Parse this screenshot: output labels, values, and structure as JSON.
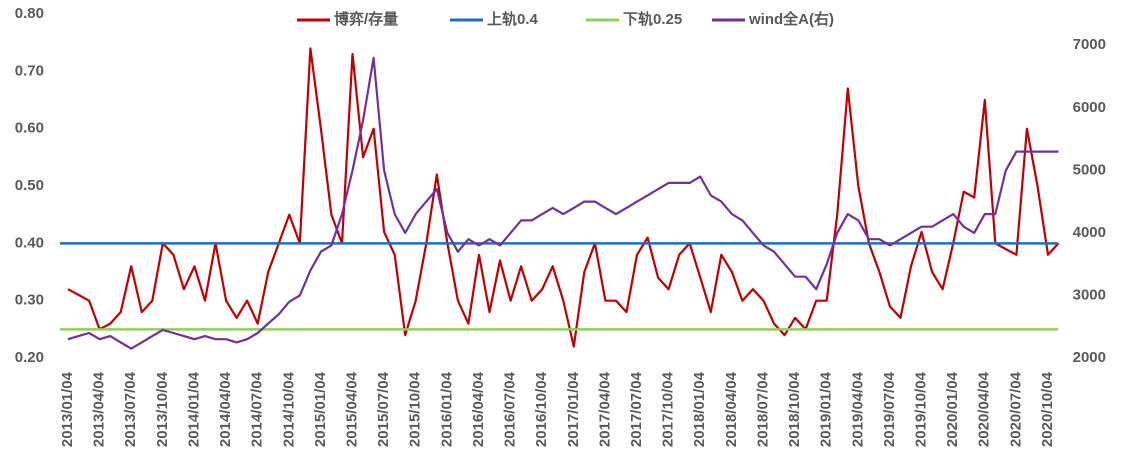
{
  "chart_data": {
    "type": "line",
    "categories": [
      "2013/01/04",
      null,
      null,
      "2013/04/04",
      null,
      null,
      "2013/07/04",
      null,
      null,
      "2013/10/04",
      null,
      null,
      "2014/01/04",
      null,
      null,
      "2014/04/04",
      null,
      null,
      "2014/07/04",
      null,
      null,
      "2014/10/04",
      null,
      null,
      "2015/01/04",
      null,
      null,
      "2015/04/04",
      null,
      null,
      "2015/07/04",
      null,
      null,
      "2015/10/04",
      null,
      null,
      "2016/01/04",
      null,
      null,
      "2016/04/04",
      null,
      null,
      "2016/07/04",
      null,
      null,
      "2016/10/04",
      null,
      null,
      "2017/01/04",
      null,
      null,
      "2017/04/04",
      null,
      null,
      "2017/07/04",
      null,
      null,
      "2017/10/04",
      null,
      null,
      "2018/01/04",
      null,
      null,
      "2018/04/04",
      null,
      null,
      "2018/07/04",
      null,
      null,
      "2018/10/04",
      null,
      null,
      "2019/01/04",
      null,
      null,
      "2019/04/04",
      null,
      null,
      "2019/07/04",
      null,
      null,
      "2019/10/04",
      null,
      null,
      "2020/01/04",
      null,
      null,
      "2020/04/04",
      null,
      null,
      "2020/07/04",
      null,
      null,
      "2020/10/04",
      null
    ],
    "series": [
      {
        "name": "博弈/存量",
        "color": "#c00000",
        "values": [
          0.32,
          0.31,
          0.3,
          0.25,
          0.26,
          0.28,
          0.36,
          0.28,
          0.3,
          0.4,
          0.38,
          0.32,
          0.36,
          0.3,
          0.4,
          0.3,
          0.27,
          0.3,
          0.26,
          0.35,
          0.4,
          0.45,
          0.4,
          0.74,
          0.6,
          0.45,
          0.4,
          0.73,
          0.55,
          0.6,
          0.42,
          0.38,
          0.24,
          0.3,
          0.4,
          0.52,
          0.4,
          0.3,
          0.26,
          0.38,
          0.28,
          0.37,
          0.3,
          0.36,
          0.3,
          0.32,
          0.36,
          0.3,
          0.22,
          0.35,
          0.4,
          0.3,
          0.3,
          0.28,
          0.38,
          0.41,
          0.34,
          0.32,
          0.38,
          0.4,
          0.34,
          0.28,
          0.38,
          0.35,
          0.3,
          0.32,
          0.3,
          0.26,
          0.24,
          0.27,
          0.25,
          0.3,
          0.3,
          0.45,
          0.67,
          0.5,
          0.4,
          0.35,
          0.29,
          0.27,
          0.36,
          0.42,
          0.35,
          0.32,
          0.4,
          0.49,
          0.48,
          0.65,
          0.4,
          0.39,
          0.38,
          0.6,
          0.5,
          0.38,
          0.4
        ]
      },
      {
        "name": "上轨0.4",
        "color": "#1f6fb4",
        "value": 0.4
      },
      {
        "name": "下轨0.25",
        "color": "#92d050",
        "value": 0.25
      },
      {
        "name": "wind全A(右)",
        "color": "#7030a0",
        "axis": "y2",
        "values": [
          2300,
          2350,
          2400,
          2300,
          2350,
          2250,
          2150,
          2250,
          2350,
          2450,
          2400,
          2350,
          2300,
          2350,
          2300,
          2300,
          2250,
          2300,
          2400,
          2550,
          2700,
          2900,
          3000,
          3400,
          3700,
          3800,
          4300,
          5000,
          5800,
          6800,
          5000,
          4300,
          4000,
          4300,
          4500,
          4700,
          4000,
          3700,
          3900,
          3800,
          3900,
          3800,
          4000,
          4200,
          4200,
          4300,
          4400,
          4300,
          4400,
          4500,
          4500,
          4400,
          4300,
          4400,
          4500,
          4600,
          4700,
          4800,
          4800,
          4800,
          4900,
          4600,
          4500,
          4300,
          4200,
          4000,
          3800,
          3700,
          3500,
          3300,
          3300,
          3100,
          3500,
          4000,
          4300,
          4200,
          3900,
          3900,
          3800,
          3900,
          4000,
          4100,
          4100,
          4200,
          4300,
          4100,
          4000,
          4300,
          4300,
          5000,
          5300,
          5300,
          5300,
          5300,
          5300
        ]
      }
    ],
    "ylim": [
      0.2,
      0.8
    ],
    "yticks": [
      {
        "value": 0.2,
        "label": "0.20"
      },
      {
        "value": 0.3,
        "label": "0.30"
      },
      {
        "value": 0.4,
        "label": "0.40"
      },
      {
        "value": 0.5,
        "label": "0.50"
      },
      {
        "value": 0.6,
        "label": "0.60"
      },
      {
        "value": 0.7,
        "label": "0.70"
      },
      {
        "value": 0.8,
        "label": "0.80"
      }
    ],
    "y2lim": [
      2000,
      7500
    ],
    "y2ticks": [
      2000,
      3000,
      4000,
      5000,
      6000,
      7000
    ],
    "legend": "top"
  }
}
